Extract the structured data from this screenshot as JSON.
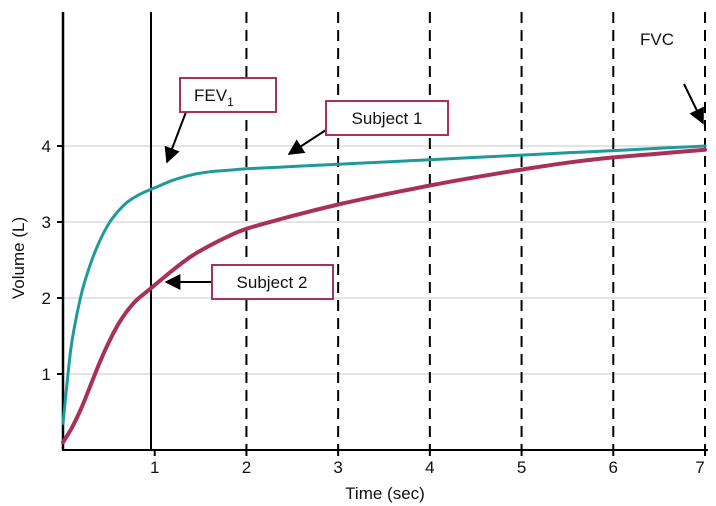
{
  "chart_data": {
    "type": "line",
    "xlabel": "Time (sec)",
    "ylabel": "Volume (L)",
    "xlim": [
      0,
      7
    ],
    "ylim": [
      0,
      4.6
    ],
    "x_ticks": [
      "1",
      "2",
      "3",
      "4",
      "5",
      "6",
      "7"
    ],
    "y_ticks": [
      "1",
      "2",
      "3",
      "4"
    ],
    "grid": "horizontal",
    "series": [
      {
        "name": "Subject 1",
        "color": "#1f9a9a",
        "x": [
          0,
          0.05,
          0.1,
          0.2,
          0.3,
          0.4,
          0.5,
          0.6,
          0.7,
          0.8,
          0.9,
          1.0,
          1.2,
          1.4,
          1.6,
          1.8,
          2.0,
          2.5,
          3.0,
          3.5,
          4.0,
          4.5,
          5.0,
          5.5,
          6.0,
          6.5,
          7.0
        ],
        "y": [
          0.35,
          0.95,
          1.45,
          2.05,
          2.45,
          2.75,
          2.98,
          3.14,
          3.26,
          3.34,
          3.4,
          3.45,
          3.55,
          3.62,
          3.66,
          3.68,
          3.7,
          3.73,
          3.76,
          3.79,
          3.82,
          3.85,
          3.88,
          3.91,
          3.94,
          3.97,
          4.0
        ]
      },
      {
        "name": "Subject 2",
        "color": "#a8305a",
        "x": [
          0,
          0.1,
          0.2,
          0.3,
          0.4,
          0.5,
          0.6,
          0.7,
          0.8,
          0.9,
          1.0,
          1.2,
          1.4,
          1.6,
          1.8,
          2.0,
          2.5,
          3.0,
          3.5,
          4.0,
          4.5,
          5.0,
          5.5,
          6.0,
          6.5,
          7.0
        ],
        "y": [
          0.1,
          0.3,
          0.55,
          0.85,
          1.15,
          1.42,
          1.65,
          1.83,
          1.97,
          2.07,
          2.17,
          2.37,
          2.55,
          2.69,
          2.81,
          2.91,
          3.08,
          3.23,
          3.36,
          3.48,
          3.59,
          3.69,
          3.78,
          3.85,
          3.9,
          3.95
        ]
      }
    ],
    "annotations": [
      {
        "label": "FEV",
        "subscript": "1",
        "boxed": true
      },
      {
        "label": "Subject 1",
        "boxed": true
      },
      {
        "label": "Subject 2",
        "boxed": true
      },
      {
        "label": "FVC",
        "boxed": false
      }
    ],
    "box_border_color": "#a8305a",
    "grid_color": "#c8c8c8"
  }
}
